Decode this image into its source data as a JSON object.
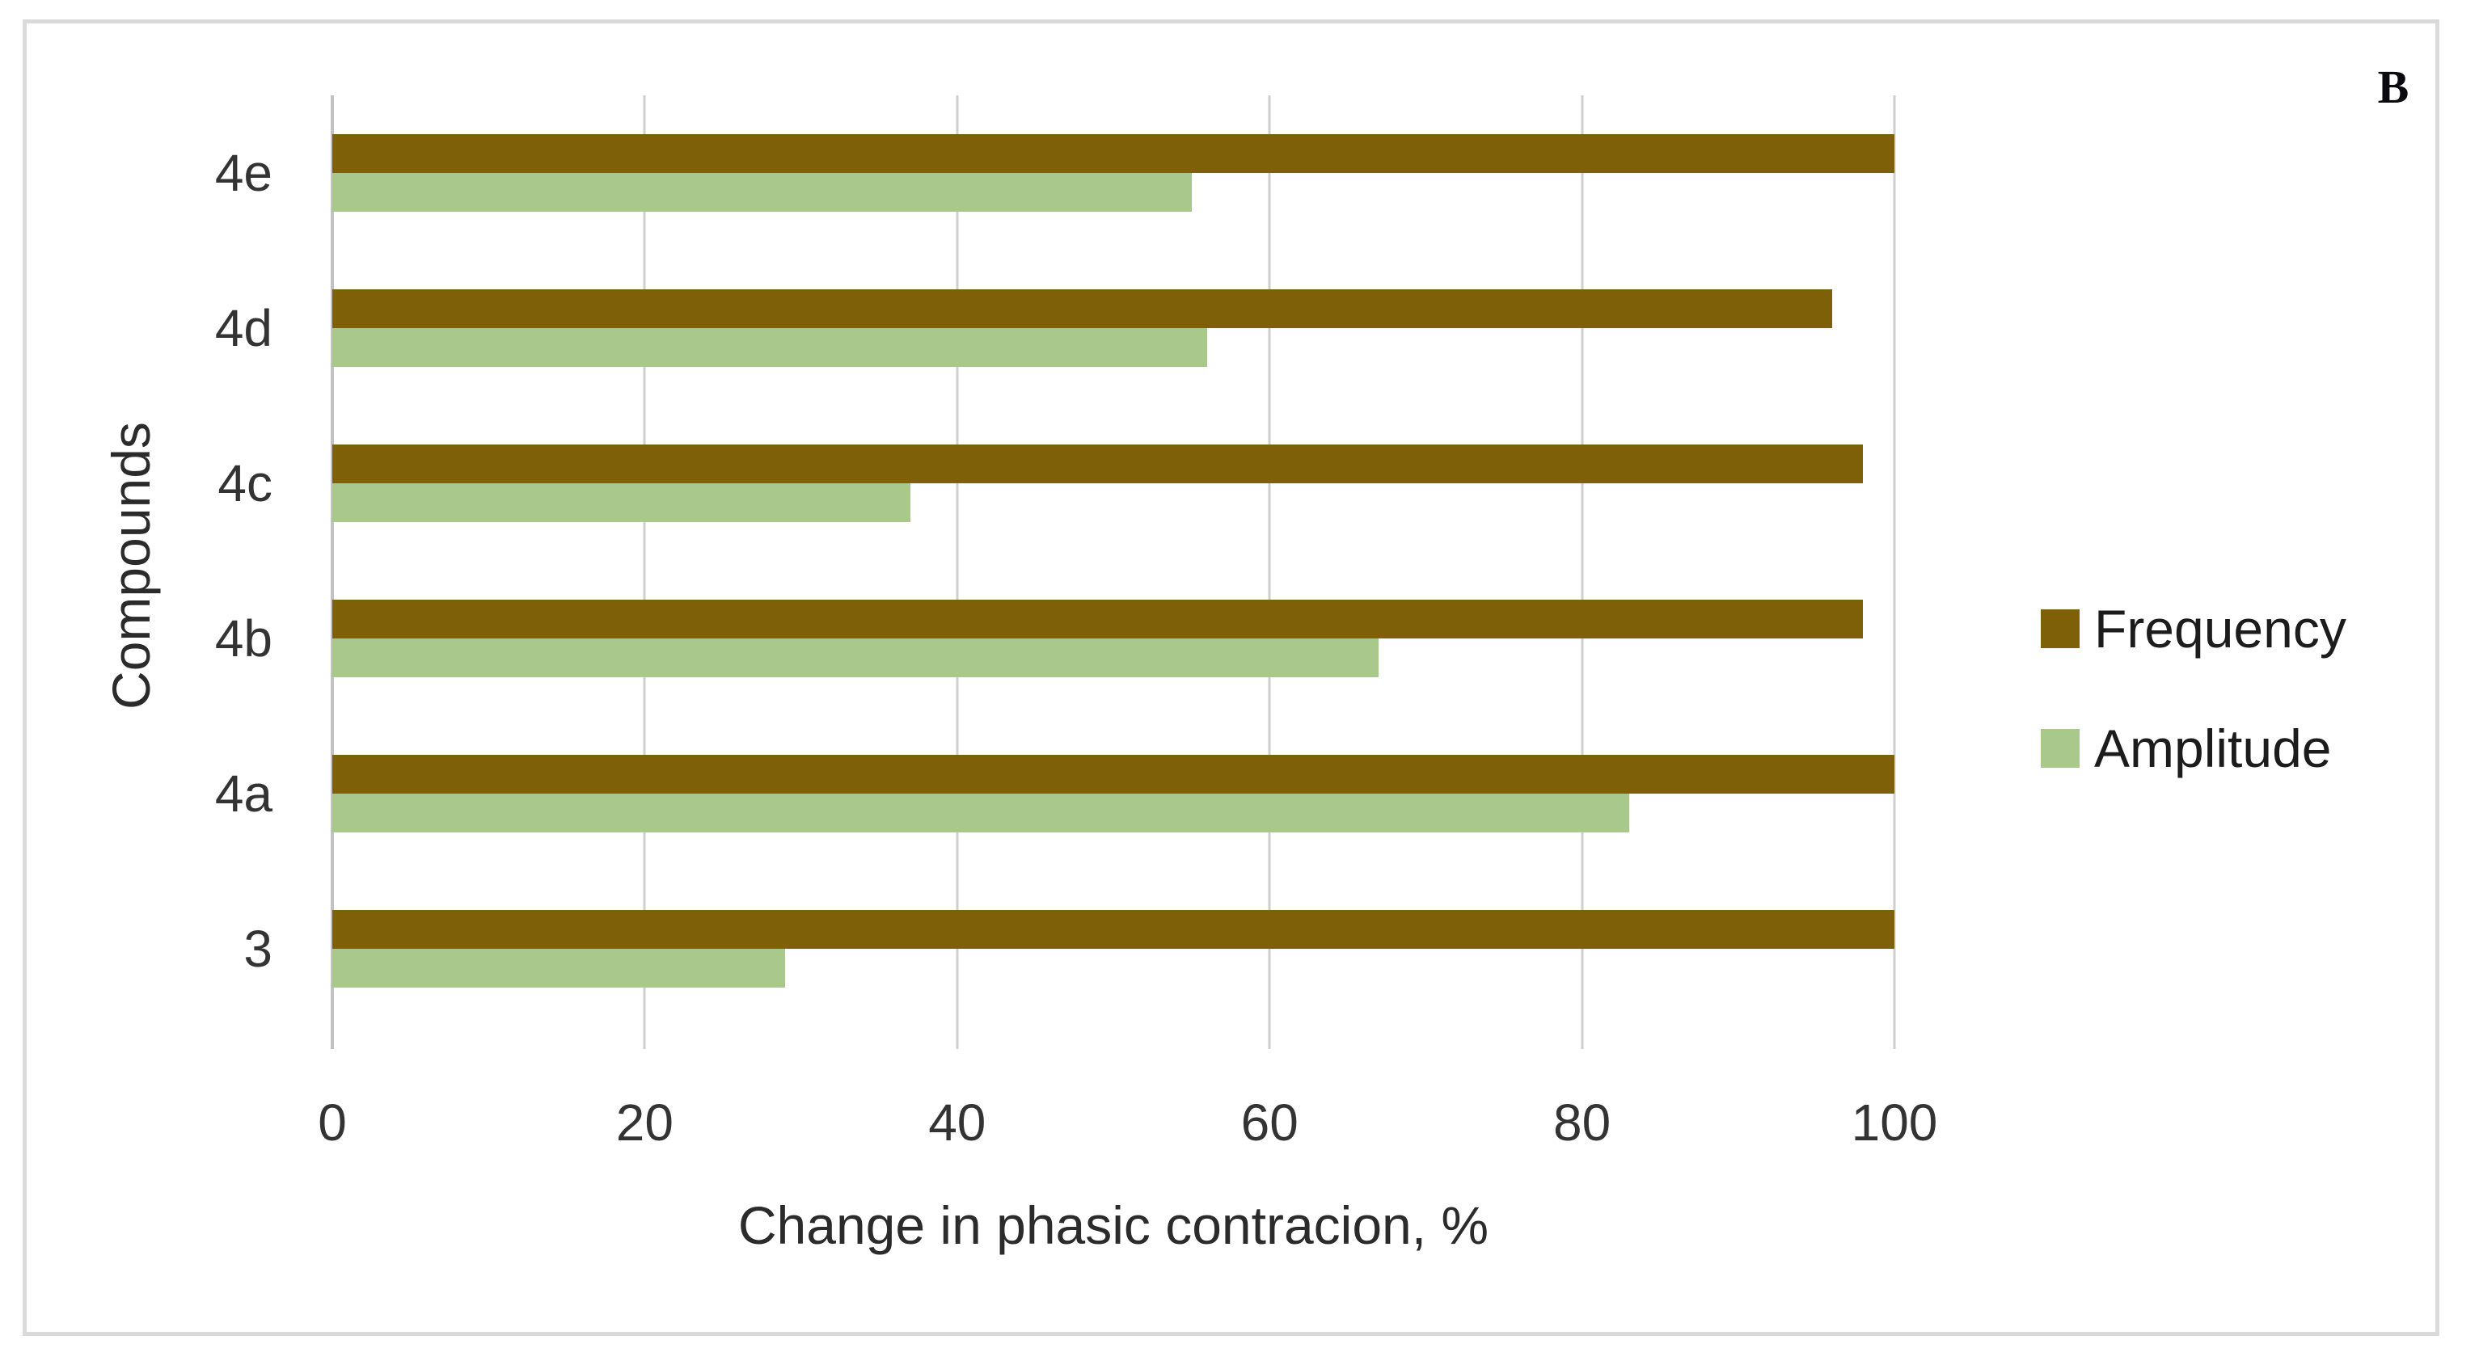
{
  "panel_label": "B",
  "chart_data": {
    "type": "bar",
    "orientation": "horizontal",
    "title": "",
    "xlabel": "Change in phasic contracion, %",
    "ylabel": "Compounds",
    "categories": [
      "4e",
      "4d",
      "4c",
      "4b",
      "4a",
      "3"
    ],
    "categories_order": "top-to-bottom",
    "series": [
      {
        "name": "Frequency",
        "color": "#7D6008",
        "values": [
          100,
          96,
          98,
          98,
          100,
          100
        ]
      },
      {
        "name": "Amplitude",
        "color": "#A8C88C",
        "values": [
          55,
          56,
          37,
          67,
          83,
          29
        ]
      }
    ],
    "xlim": [
      0,
      100
    ],
    "x_ticks": [
      0,
      20,
      40,
      60,
      80,
      100
    ],
    "grid": "vertical",
    "legend_position": "right-center"
  },
  "style": {
    "gridline_color": "#CFCFCF",
    "axis_line_color": "#C2C2C2",
    "frame_border_color": "#DADADA",
    "tick_text_color": "#333333",
    "title_text_color": "#2b2b2b"
  }
}
